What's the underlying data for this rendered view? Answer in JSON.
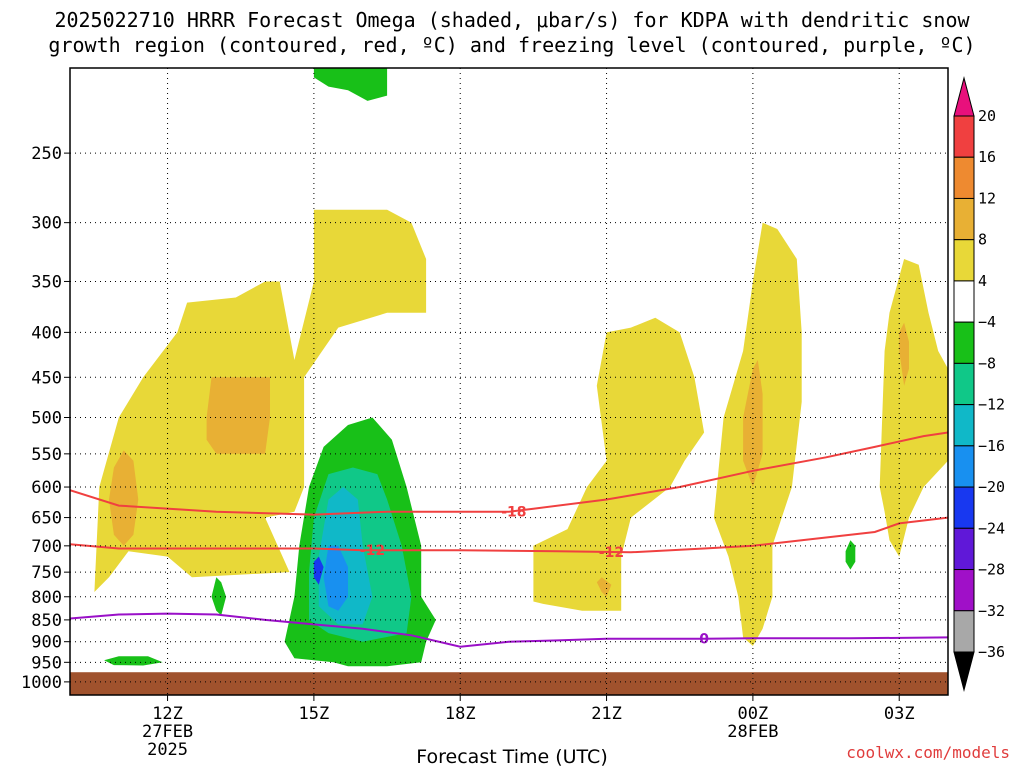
{
  "title_line1": "2025022710 HRRR Forecast Omega (shaded, μbar/s) for KDPA with dendritic snow",
  "title_line2": "growth region (contoured, red, ºC) and freezing level (contoured, purple, ºC)",
  "credit": "coolwx.com/models",
  "chart_data": {
    "type": "heatmap",
    "xlabel": "Forecast Time (UTC)",
    "x_ticks": [
      {
        "hour": 12,
        "label": "12Z",
        "sub1": "27FEB",
        "sub2": "2025"
      },
      {
        "hour": 15,
        "label": "15Z",
        "sub1": "",
        "sub2": ""
      },
      {
        "hour": 18,
        "label": "18Z",
        "sub1": "",
        "sub2": ""
      },
      {
        "hour": 21,
        "label": "21Z",
        "sub1": "",
        "sub2": ""
      },
      {
        "hour": 24,
        "label": "00Z",
        "sub1": "28FEB",
        "sub2": ""
      },
      {
        "hour": 27,
        "label": "03Z",
        "sub1": "",
        "sub2": ""
      }
    ],
    "x_range_hours": [
      10,
      28
    ],
    "y_ticks": [
      250,
      300,
      350,
      400,
      450,
      500,
      550,
      600,
      650,
      700,
      750,
      800,
      850,
      900,
      950,
      1000
    ],
    "y_range_mb": [
      200,
      1035
    ],
    "y_scale": "log-pressure (reversed)",
    "grid": "dotted",
    "surface_level_mb": 975,
    "colorbar": {
      "labels": [
        "20",
        "16",
        "12",
        "8",
        "4",
        "−4",
        "−8",
        "−12",
        "−16",
        "−20",
        "−24",
        "−28",
        "−32",
        "−36"
      ],
      "colors": [
        "#e8107c",
        "#f04040",
        "#ee8a30",
        "#e8b034",
        "#e8d838",
        "#ffffff",
        "#18c018",
        "#10c888",
        "#10b8c8",
        "#1890f0",
        "#1838f0",
        "#6018d8",
        "#a010c8",
        "#a8a8a8",
        "#000000"
      ]
    },
    "contours": [
      {
        "label": "-18",
        "color": "#f04040",
        "points": [
          [
            10,
            605
          ],
          [
            11.0,
            630
          ],
          [
            13,
            640
          ],
          [
            15,
            645
          ],
          [
            16.5,
            640
          ],
          [
            18,
            640
          ],
          [
            19,
            640
          ],
          [
            19.5,
            635
          ],
          [
            21,
            620
          ],
          [
            22.5,
            600
          ],
          [
            24,
            575
          ],
          [
            25.5,
            555
          ],
          [
            26.5,
            540
          ],
          [
            27.5,
            525
          ],
          [
            28,
            520
          ]
        ]
      },
      {
        "label": "-12",
        "color": "#f04040",
        "points": [
          [
            10,
            697
          ],
          [
            11.0,
            705
          ],
          [
            13,
            705
          ],
          [
            15,
            705
          ],
          [
            16,
            708
          ],
          [
            18,
            708
          ],
          [
            20,
            710
          ],
          [
            21.5,
            712
          ],
          [
            23,
            705
          ],
          [
            24,
            700
          ],
          [
            25,
            690
          ],
          [
            26.5,
            675
          ],
          [
            27,
            660
          ],
          [
            28,
            650
          ]
        ]
      },
      {
        "label": "0",
        "color": "#9a10c8",
        "points": [
          [
            10,
            847
          ],
          [
            11,
            838
          ],
          [
            12,
            836
          ],
          [
            13,
            838
          ],
          [
            14,
            850
          ],
          [
            15,
            860
          ],
          [
            16,
            870
          ],
          [
            17,
            885
          ],
          [
            18,
            912
          ],
          [
            19,
            900
          ],
          [
            20,
            897
          ],
          [
            21,
            893
          ],
          [
            22,
            893
          ],
          [
            23,
            893
          ],
          [
            24,
            892
          ],
          [
            26,
            892
          ],
          [
            28,
            890
          ]
        ]
      }
    ],
    "contour_label_positions": [
      {
        "label": "-18",
        "at": [
          19.1,
          640
        ]
      },
      {
        "label": "-12",
        "at": [
          16.2,
          708
        ]
      },
      {
        "label": "-12",
        "at": [
          21.1,
          711
        ]
      },
      {
        "label": "0",
        "at": [
          23.0,
          893
        ]
      }
    ],
    "shaded_regions": [
      {
        "band": "4 to 8",
        "color": "#e8d838",
        "points": [
          [
            10.5,
            790
          ],
          [
            10.6,
            600
          ],
          [
            11.0,
            500
          ],
          [
            11.5,
            450
          ],
          [
            12.2,
            400
          ],
          [
            12.4,
            370
          ],
          [
            13.4,
            365
          ],
          [
            14.0,
            350
          ],
          [
            14.3,
            350
          ],
          [
            14.6,
            430
          ],
          [
            15.0,
            350
          ],
          [
            15.0,
            290
          ],
          [
            16.5,
            290
          ],
          [
            17.0,
            300
          ],
          [
            17.3,
            330
          ],
          [
            17.3,
            380
          ],
          [
            16.5,
            380
          ],
          [
            15.5,
            395
          ],
          [
            14.8,
            450
          ],
          [
            14.8,
            600
          ],
          [
            14.6,
            640
          ],
          [
            14.0,
            650
          ],
          [
            13.3,
            655
          ],
          [
            12.5,
            650
          ],
          [
            12.2,
            640
          ],
          [
            12.4,
            640
          ],
          [
            14.0,
            650
          ],
          [
            14.5,
            750
          ],
          [
            12.5,
            760
          ],
          [
            12.0,
            720
          ],
          [
            11.2,
            710
          ],
          [
            10.8,
            760
          ]
        ]
      },
      {
        "band": "4 to 8",
        "color": "#e8d838",
        "points": [
          [
            19.5,
            810
          ],
          [
            19.5,
            700
          ],
          [
            20.2,
            670
          ],
          [
            20.6,
            600
          ],
          [
            21.0,
            560
          ],
          [
            20.8,
            460
          ],
          [
            21.0,
            400
          ],
          [
            21.5,
            395
          ],
          [
            22.0,
            385
          ],
          [
            22.5,
            400
          ],
          [
            22.8,
            450
          ],
          [
            23.0,
            520
          ],
          [
            22.6,
            560
          ],
          [
            22.3,
            600
          ],
          [
            21.5,
            650
          ],
          [
            21.3,
            720
          ],
          [
            21.3,
            830
          ],
          [
            20.5,
            830
          ],
          [
            19.7,
            815
          ]
        ]
      },
      {
        "band": "4 to 8",
        "color": "#e8d838",
        "points": [
          [
            23.2,
            650
          ],
          [
            23.4,
            500
          ],
          [
            23.8,
            420
          ],
          [
            24.0,
            350
          ],
          [
            24.2,
            300
          ],
          [
            24.5,
            305
          ],
          [
            24.9,
            330
          ],
          [
            25.0,
            400
          ],
          [
            25.0,
            480
          ],
          [
            24.8,
            600
          ],
          [
            24.4,
            700
          ],
          [
            24.4,
            800
          ],
          [
            24.2,
            870
          ],
          [
            24.0,
            910
          ],
          [
            23.8,
            890
          ],
          [
            23.7,
            800
          ],
          [
            23.5,
            720
          ]
        ]
      },
      {
        "band": "4 to 8",
        "color": "#e8d838",
        "points": [
          [
            26.6,
            600
          ],
          [
            26.7,
            420
          ],
          [
            26.8,
            380
          ],
          [
            27.1,
            330
          ],
          [
            27.4,
            335
          ],
          [
            27.6,
            380
          ],
          [
            27.8,
            420
          ],
          [
            28,
            440
          ],
          [
            28,
            560
          ],
          [
            27.5,
            600
          ],
          [
            27.2,
            650
          ],
          [
            27.0,
            720
          ],
          [
            26.8,
            690
          ],
          [
            26.7,
            640
          ]
        ]
      },
      {
        "band": "8 to 12",
        "color": "#e8b034",
        "points": [
          [
            10.8,
            620
          ],
          [
            10.9,
            570
          ],
          [
            11.1,
            545
          ],
          [
            11.3,
            560
          ],
          [
            11.4,
            620
          ],
          [
            11.3,
            680
          ],
          [
            11.1,
            700
          ],
          [
            10.9,
            680
          ]
        ]
      },
      {
        "band": "8 to 12",
        "color": "#e8b034",
        "points": [
          [
            12.8,
            500
          ],
          [
            12.9,
            450
          ],
          [
            14.1,
            450
          ],
          [
            14.1,
            500
          ],
          [
            14.0,
            550
          ],
          [
            13.0,
            550
          ],
          [
            12.8,
            530
          ]
        ]
      },
      {
        "band": "8 to 12",
        "color": "#e8b034",
        "points": [
          [
            23.8,
            500
          ],
          [
            24.0,
            440
          ],
          [
            24.1,
            430
          ],
          [
            24.2,
            470
          ],
          [
            24.2,
            550
          ],
          [
            24.0,
            600
          ],
          [
            23.8,
            560
          ]
        ]
      },
      {
        "band": "8 to 12",
        "color": "#e8b034",
        "points": [
          [
            27.0,
            420
          ],
          [
            27.0,
            400
          ],
          [
            27.1,
            390
          ],
          [
            27.2,
            410
          ],
          [
            27.2,
            440
          ],
          [
            27.1,
            460
          ]
        ]
      },
      {
        "band": "8 to 12",
        "color": "#e8b034",
        "points": [
          [
            20.8,
            770
          ],
          [
            20.9,
            760
          ],
          [
            21.1,
            775
          ],
          [
            21.0,
            800
          ],
          [
            20.9,
            790
          ]
        ]
      },
      {
        "band": "-8 to -4",
        "color": "#18c018",
        "points": [
          [
            15.0,
            200
          ],
          [
            16.5,
            200
          ],
          [
            16.5,
            215
          ],
          [
            16.1,
            218
          ],
          [
            15.7,
            212
          ],
          [
            15.3,
            210
          ],
          [
            15.0,
            205
          ]
        ]
      },
      {
        "band": "-8 to -4",
        "color": "#18c018",
        "points": [
          [
            15.4,
            950
          ],
          [
            14.6,
            940
          ],
          [
            14.4,
            900
          ],
          [
            14.6,
            800
          ],
          [
            14.7,
            700
          ],
          [
            14.9,
            600
          ],
          [
            15.2,
            540
          ],
          [
            15.7,
            510
          ],
          [
            16.2,
            500
          ],
          [
            16.6,
            530
          ],
          [
            16.9,
            600
          ],
          [
            17.2,
            700
          ],
          [
            17.2,
            800
          ],
          [
            17.5,
            850
          ],
          [
            17.3,
            900
          ],
          [
            17.2,
            950
          ],
          [
            16.5,
            960
          ],
          [
            15.7,
            960
          ]
        ]
      },
      {
        "band": "-12 to -8",
        "color": "#10c888",
        "points": [
          [
            14.9,
            850
          ],
          [
            14.9,
            750
          ],
          [
            15.0,
            650
          ],
          [
            15.3,
            580
          ],
          [
            15.8,
            570
          ],
          [
            16.3,
            580
          ],
          [
            16.5,
            620
          ],
          [
            16.8,
            700
          ],
          [
            17.0,
            800
          ],
          [
            16.9,
            880
          ],
          [
            16.0,
            900
          ],
          [
            15.3,
            880
          ]
        ]
      },
      {
        "band": "-16 to -12",
        "color": "#10b8c8",
        "points": [
          [
            15.1,
            820
          ],
          [
            15.1,
            720
          ],
          [
            15.3,
            620
          ],
          [
            15.6,
            600
          ],
          [
            15.9,
            620
          ],
          [
            16.0,
            700
          ],
          [
            16.2,
            800
          ],
          [
            16.0,
            860
          ],
          [
            15.5,
            860
          ]
        ]
      },
      {
        "band": "-20 to -16",
        "color": "#1890f0",
        "points": [
          [
            15.2,
            760
          ],
          [
            15.3,
            700
          ],
          [
            15.5,
            700
          ],
          [
            15.7,
            740
          ],
          [
            15.7,
            800
          ],
          [
            15.5,
            830
          ],
          [
            15.3,
            820
          ]
        ]
      },
      {
        "band": "-24 to -20",
        "color": "#1838f0",
        "points": [
          [
            15.0,
            760
          ],
          [
            15.0,
            730
          ],
          [
            15.1,
            720
          ],
          [
            15.2,
            740
          ],
          [
            15.1,
            775
          ]
        ]
      },
      {
        "band": "-8 to -4",
        "color": "#18c018",
        "points": [
          [
            10.7,
            945
          ],
          [
            11.0,
            935
          ],
          [
            11.6,
            935
          ],
          [
            11.9,
            950
          ],
          [
            11.5,
            958
          ],
          [
            10.9,
            957
          ]
        ]
      },
      {
        "band": "-8 to -4",
        "color": "#18c018",
        "points": [
          [
            12.9,
            800
          ],
          [
            13.0,
            760
          ],
          [
            13.1,
            770
          ],
          [
            13.2,
            800
          ],
          [
            13.1,
            840
          ],
          [
            13.0,
            830
          ]
        ]
      },
      {
        "band": "-8 to -4",
        "color": "#18c018",
        "points": [
          [
            25.9,
            710
          ],
          [
            26.0,
            690
          ],
          [
            26.1,
            700
          ],
          [
            26.1,
            730
          ],
          [
            26.0,
            745
          ],
          [
            25.9,
            730
          ]
        ]
      }
    ]
  }
}
